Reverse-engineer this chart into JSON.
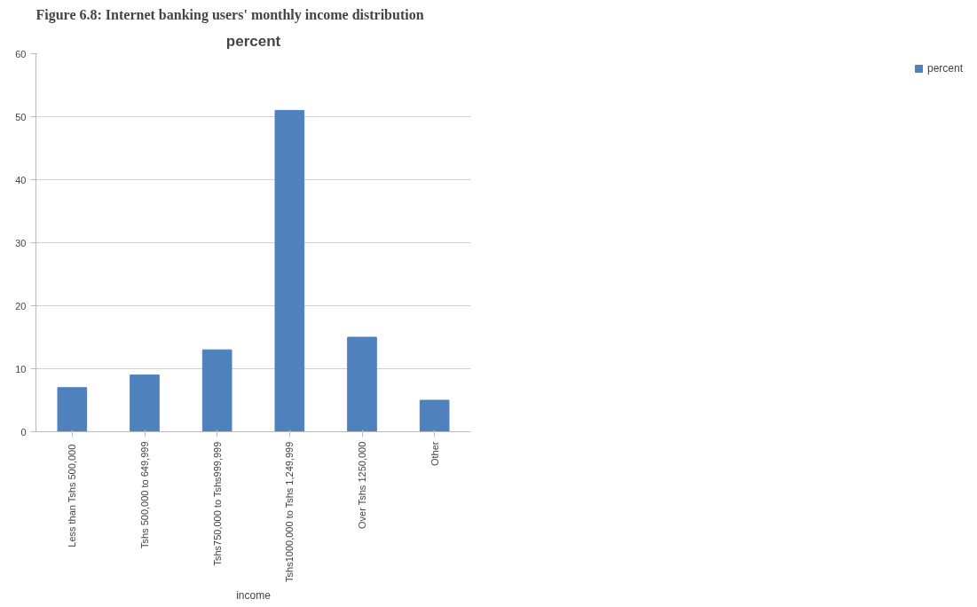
{
  "chart_data": {
    "type": "bar",
    "title": "percent",
    "subtitle": "Figure 6.8: Internet banking users' monthly income distribution",
    "xlabel": "income",
    "categories": [
      "Less than  Tshs 500,000",
      "Tshs 500,000 to 649,999",
      "Tshs750,000 to Tshs999,999",
      "Tshs1000,000 to Tshs 1,249,999",
      "Over Tshs 1250,000",
      "Other"
    ],
    "series": [
      {
        "name": "percent",
        "color": "#4f81bd",
        "values": [
          7,
          9,
          13,
          51,
          15,
          5
        ]
      }
    ],
    "ylim": [
      0,
      60
    ],
    "yticks": [
      0,
      10,
      20,
      30,
      40,
      50,
      60
    ],
    "grid": "y",
    "legend": "right"
  }
}
